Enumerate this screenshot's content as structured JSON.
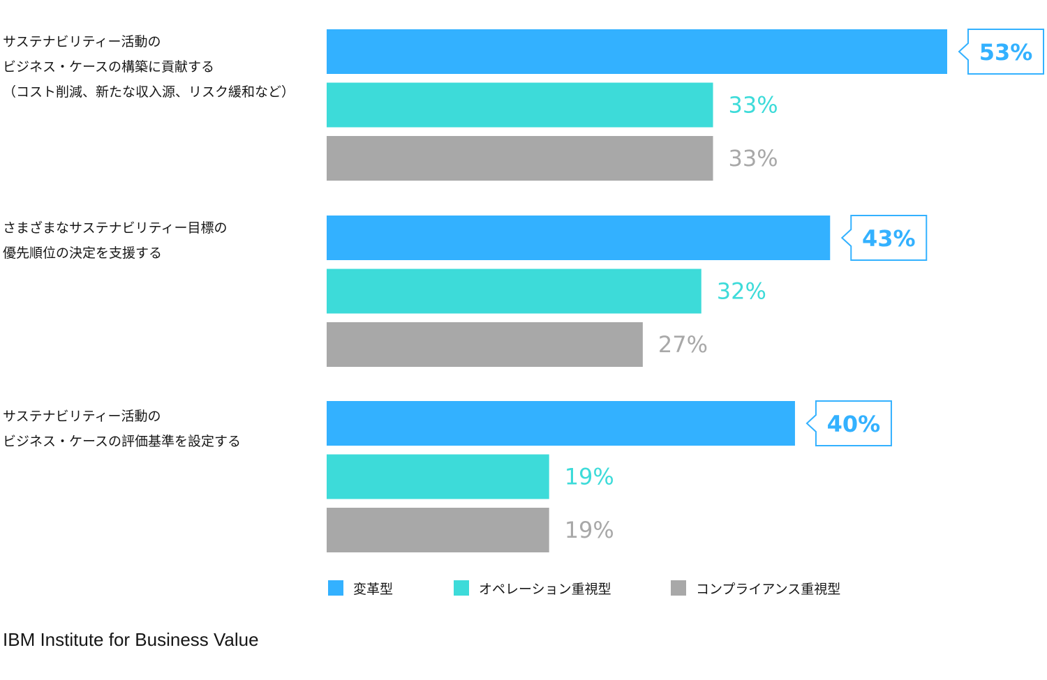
{
  "chart_data": {
    "type": "bar",
    "orientation": "horizontal",
    "categories": [
      [
        "サステナビリティー活動の",
        "ビジネス・ケースの構築に貢献する",
        "（コスト削減、新たな収入源、リスク緩和など）"
      ],
      [
        "さまざまなサステナビリティー目標の",
        "優先順位の決定を支援する"
      ],
      [
        "サステナビリティー活動の",
        "ビジネス・ケースの評価基準を設定する"
      ]
    ],
    "series": [
      {
        "name": "変革型",
        "color": "#33b1ff",
        "values": [
          53,
          43,
          40
        ],
        "labels": [
          "53%",
          "43%",
          "40%"
        ],
        "highlight": true
      },
      {
        "name": "オペレーション重視型",
        "color": "#3ddbd9",
        "values": [
          33,
          32,
          19
        ],
        "labels": [
          "33%",
          "32%",
          "19%"
        ]
      },
      {
        "name": "コンプライアンス重視型",
        "color": "#a8a8a8",
        "values": [
          33,
          27,
          19
        ],
        "labels": [
          "33%",
          "27%",
          "19%"
        ]
      }
    ],
    "xlim": [
      0,
      60
    ],
    "legend_position": "bottom",
    "grid": false
  },
  "source": "IBM Institute for Business Value"
}
